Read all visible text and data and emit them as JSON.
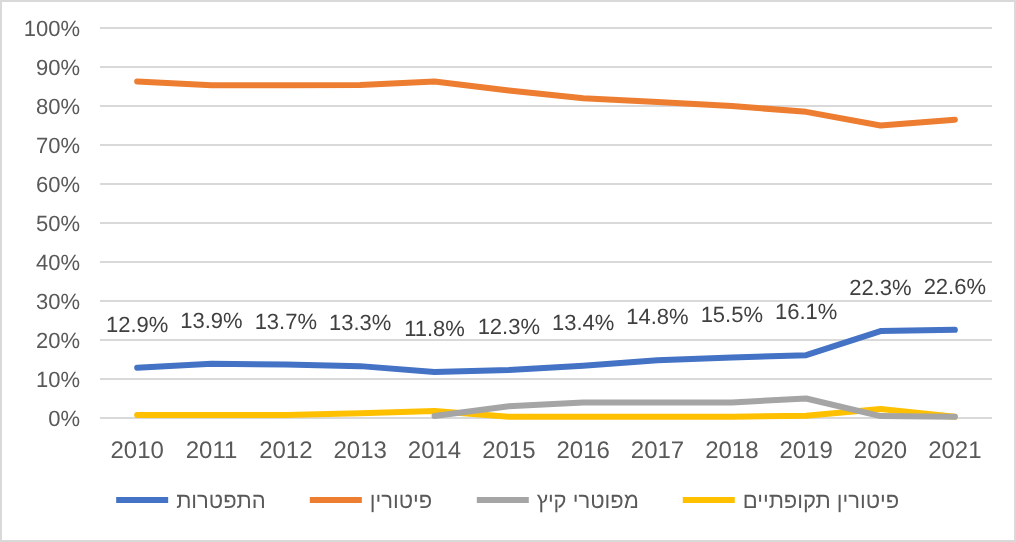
{
  "chart_data": {
    "type": "line",
    "categories": [
      "2010",
      "2011",
      "2012",
      "2013",
      "2014",
      "2015",
      "2016",
      "2017",
      "2018",
      "2019",
      "2020",
      "2021"
    ],
    "series": [
      {
        "name": "התפטרות",
        "color": "#4472c4",
        "values": [
          12.9,
          13.9,
          13.7,
          13.3,
          11.8,
          12.3,
          13.4,
          14.8,
          15.5,
          16.1,
          22.3,
          22.6
        ],
        "value_labels": [
          "12.9%",
          "13.9%",
          "13.7%",
          "13.3%",
          "11.8%",
          "12.3%",
          "13.4%",
          "14.8%",
          "15.5%",
          "16.1%",
          "22.3%",
          "22.6%"
        ]
      },
      {
        "name": "פיטורין",
        "color": "#ed7d31",
        "values": [
          86.3,
          85.3,
          85.3,
          85.4,
          86.3,
          84,
          82,
          81,
          80,
          78.5,
          75,
          76.5
        ]
      },
      {
        "name": "מפוטרי קיץ",
        "color": "#a5a5a5",
        "values": [
          null,
          null,
          null,
          null,
          0.5,
          3,
          4,
          4,
          4,
          5,
          0.5,
          0.3
        ]
      },
      {
        "name": "פיטורין תקופתיים",
        "color": "#ffc000",
        "values": [
          0.8,
          0.8,
          0.8,
          1.2,
          1.8,
          0.3,
          0.3,
          0.3,
          0.3,
          0.6,
          2.3,
          0.3
        ]
      }
    ],
    "ylim": [
      0,
      100
    ],
    "yticks": [
      {
        "value": 0,
        "label": "0%"
      },
      {
        "value": 10,
        "label": "10%"
      },
      {
        "value": 20,
        "label": "20%"
      },
      {
        "value": 30,
        "label": "30%"
      },
      {
        "value": 40,
        "label": "40%"
      },
      {
        "value": 50,
        "label": "50%"
      },
      {
        "value": 60,
        "label": "60%"
      },
      {
        "value": 70,
        "label": "70%"
      },
      {
        "value": 80,
        "label": "80%"
      },
      {
        "value": 90,
        "label": "90%"
      },
      {
        "value": 100,
        "label": "100%"
      }
    ],
    "grid": "y",
    "legend": "bottom"
  }
}
